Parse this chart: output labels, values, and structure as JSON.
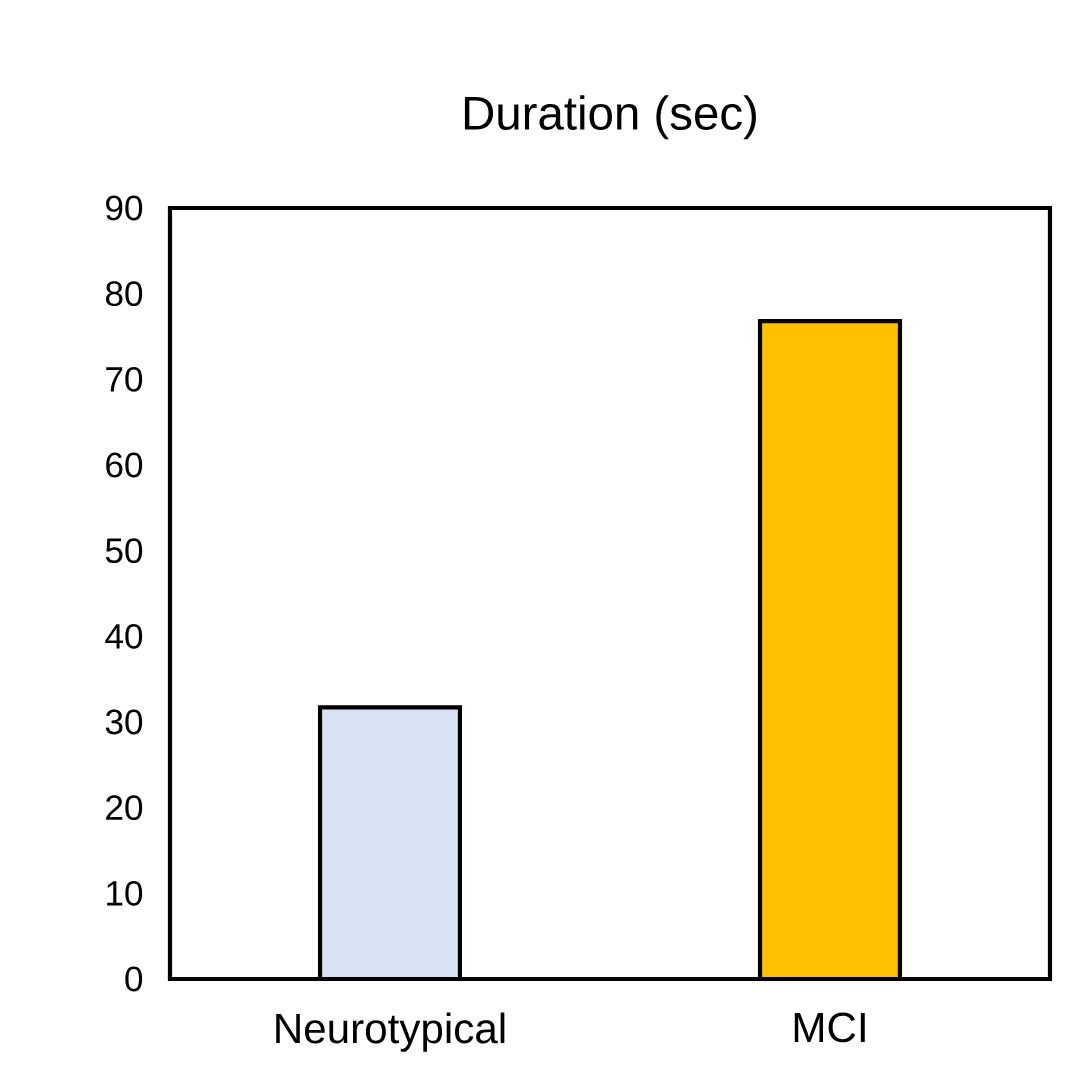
{
  "chart_data": {
    "type": "bar",
    "title": "Duration (sec)",
    "categories": [
      "Neurotypical",
      "MCI"
    ],
    "values": [
      31.7,
      76.8
    ],
    "colors": [
      "#dae3f3",
      "#ffc000"
    ],
    "ylim": [
      0,
      90
    ],
    "yticks": [
      0,
      10,
      20,
      30,
      40,
      50,
      60,
      70,
      80,
      90
    ],
    "grid": false
  }
}
